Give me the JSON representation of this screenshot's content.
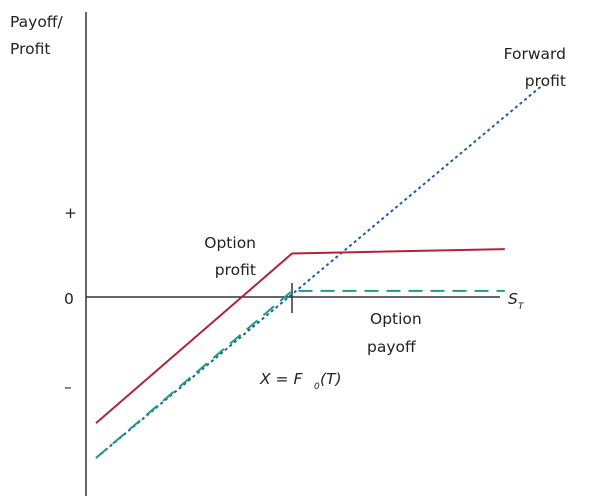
{
  "chart_data": {
    "type": "line",
    "title": "",
    "ylabel": [
      "Payoff/",
      "Profit"
    ],
    "xlabel": {
      "main": "S",
      "sub": "T"
    },
    "y_ticks": [
      {
        "label": "+",
        "y": 1
      },
      {
        "label": "0",
        "y": 0
      },
      {
        "label": "–",
        "y": -1
      }
    ],
    "strike_marker": {
      "x": 0,
      "label_parts": [
        "X = F",
        "0",
        "(T)"
      ]
    },
    "xlim": [
      -1.8,
      2.0
    ],
    "ylim": [
      -2.3,
      3.4
    ],
    "series": [
      {
        "key": "forward",
        "label_lines": [
          "Forward",
          "profit"
        ],
        "color": "#1f5ea8",
        "style": "dotted",
        "points": [
          [
            -1.75,
            -1.85
          ],
          [
            2.25,
            2.45
          ]
        ]
      },
      {
        "key": "option_profit",
        "label_lines": [
          "Option",
          "profit"
        ],
        "color": "#b0243a",
        "style": "solid",
        "points": [
          [
            -1.75,
            -1.45
          ],
          [
            0,
            0.5
          ],
          [
            1.9,
            0.55
          ]
        ]
      },
      {
        "key": "option_payoff",
        "label_lines": [
          "Option",
          "payoff"
        ],
        "color": "#1f9d7c",
        "style": "dashed",
        "points": [
          [
            -1.75,
            -1.85
          ],
          [
            0,
            0.07
          ],
          [
            1.9,
            0.07
          ]
        ]
      }
    ]
  }
}
